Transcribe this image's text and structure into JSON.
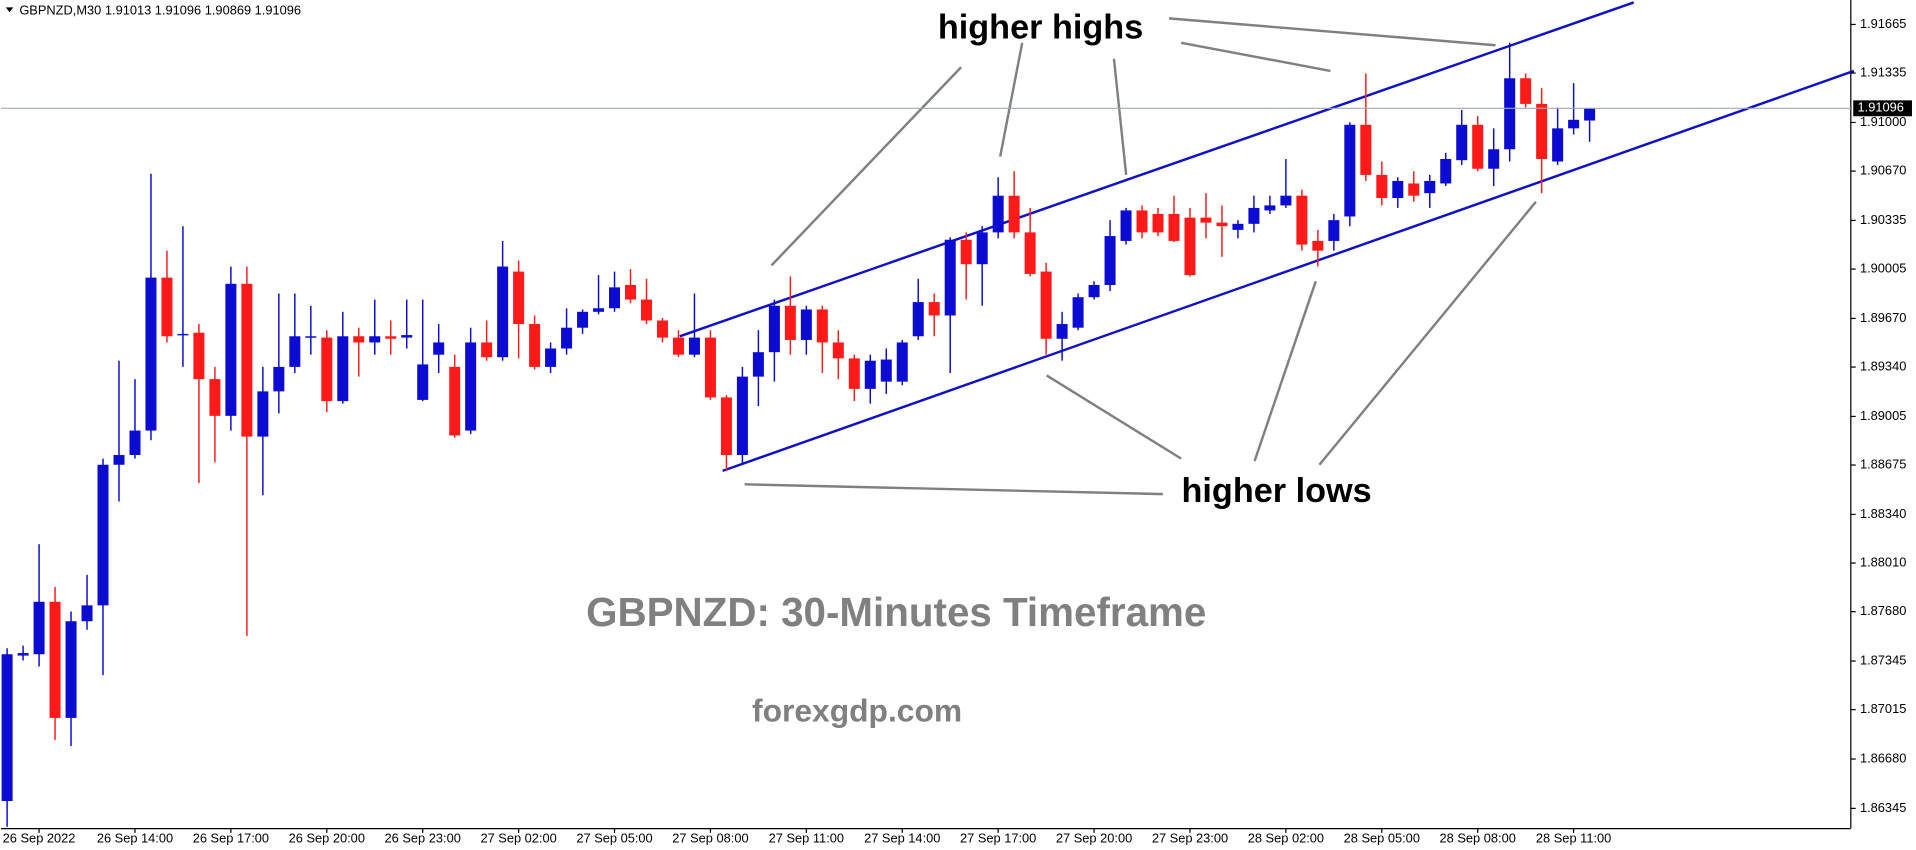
{
  "chart_data": {
    "type": "candlestick",
    "header": "GBPNZD,M30  1.91013 1.91096 1.90869 1.91096",
    "title": "GBPNZD: 30-Minutes Timeframe",
    "subtitle": "forexgdp.com",
    "annotations": [
      "higher highs",
      "higher lows"
    ],
    "up_color": "#0b0bd2",
    "down_color": "#ff1a1a",
    "ylim": [
      1.86212,
      1.91831
    ],
    "yticks": [
      1.91665,
      1.91335,
      {
        "value": 1.91,
        "label": "1.91000"
      },
      {
        "value": 1.9067,
        "label": "1.90670"
      },
      1.90335,
      1.90005,
      {
        "value": 1.8967,
        "label": "1.89670"
      },
      {
        "value": 1.8934,
        "label": "1.89340"
      },
      1.89005,
      1.88675,
      {
        "value": 1.8834,
        "label": "1.88340"
      },
      {
        "value": 1.8801,
        "label": "1.88010"
      },
      {
        "value": 1.8768,
        "label": "1.87680"
      },
      1.87345,
      1.87015,
      {
        "value": 1.8668,
        "label": "1.86680"
      },
      1.86345
    ],
    "categories": [
      null,
      null,
      "26 Sep 2022",
      null,
      null,
      null,
      null,
      null,
      "26 Sep 14:00",
      null,
      null,
      null,
      null,
      null,
      "26 Sep 17:00",
      null,
      null,
      null,
      null,
      null,
      "26 Sep 20:00",
      null,
      null,
      null,
      null,
      null,
      "26 Sep 23:00",
      null,
      null,
      null,
      null,
      null,
      "27 Sep 02:00",
      null,
      null,
      null,
      null,
      null,
      "27 Sep 05:00",
      null,
      null,
      null,
      null,
      null,
      "27 Sep 08:00",
      null,
      null,
      null,
      null,
      null,
      "27 Sep 11:00",
      null,
      null,
      null,
      null,
      null,
      "27 Sep 14:00",
      null,
      null,
      null,
      null,
      null,
      "27 Sep 17:00",
      null,
      null,
      null,
      null,
      null,
      "27 Sep 20:00",
      null,
      null,
      null,
      null,
      null,
      "27 Sep 23:00",
      null,
      null,
      null,
      null,
      null,
      "28 Sep 02:00",
      null,
      null,
      null,
      null,
      null,
      "28 Sep 05:00",
      null,
      null,
      null,
      null,
      null,
      "28 Sep 08:00",
      null,
      null,
      null,
      null,
      null,
      "28 Sep 11:00",
      null
    ],
    "open": [
      1.86395,
      1.87382,
      1.87391,
      1.87747,
      1.86959,
      1.87615,
      1.87723,
      1.88677,
      1.88743,
      1.88909,
      1.89947,
      1.89557,
      1.89573,
      1.89258,
      1.89009,
      1.89905,
      1.88868,
      1.89175,
      1.89341,
      1.8954,
      1.8954,
      1.89109,
      1.89549,
      1.89507,
      1.89549,
      1.8954,
      1.89117,
      1.89424,
      1.89341,
      1.88909,
      1.89507,
      1.89407,
      1.89988,
      1.89632,
      1.89341,
      1.89466,
      1.89607,
      1.89715,
      1.89739,
      1.89897,
      1.89798,
      1.89656,
      1.8954,
      1.89424,
      1.8954,
      1.89134,
      1.88743,
      1.89275,
      1.89441,
      1.89756,
      1.89524,
      1.89731,
      1.89507,
      1.89399,
      1.89192,
      1.89241,
      1.89241,
      1.89549,
      1.89781,
      1.8969,
      1.90204,
      1.90038,
      1.90254,
      1.90503,
      1.90254,
      1.89988,
      1.89532,
      1.89607,
      1.89814,
      1.89897,
      1.90196,
      1.90403,
      1.90379,
      1.90379,
      1.90354,
      1.90354,
      1.9032,
      1.90271,
      1.90312,
      1.90403,
      1.90437,
      1.90503,
      1.90196,
      1.90196,
      1.90362,
      1.90984,
      1.90644,
      1.90487,
      1.90586,
      1.9052,
      1.90586,
      1.90744,
      1.90984,
      1.90686,
      1.90818,
      1.913,
      1.91126,
      1.90735,
      1.9096,
      1.91013
    ],
    "high": [
      1.87432,
      1.87449,
      1.88138,
      1.87847,
      1.87681,
      1.8793,
      1.88719,
      1.89383,
      1.89258,
      1.90652,
      1.9013,
      1.90296,
      1.89632,
      1.89341,
      1.90022,
      1.90022,
      1.89341,
      1.89839,
      1.89839,
      1.89756,
      1.8959,
      1.89715,
      1.89607,
      1.89798,
      1.89656,
      1.89798,
      1.89798,
      1.89632,
      1.89424,
      1.89607,
      1.89656,
      1.90196,
      1.90063,
      1.8969,
      1.89507,
      1.89739,
      1.89731,
      1.89964,
      1.89988,
      1.90005,
      1.89939,
      1.89673,
      1.8959,
      1.89839,
      1.8959,
      1.8915,
      1.89341,
      1.8959,
      1.89798,
      1.89955,
      1.89756,
      1.89756,
      1.8959,
      1.89424,
      1.89424,
      1.89466,
      1.89524,
      1.89939,
      1.89839,
      1.90221,
      1.90254,
      1.90296,
      1.90628,
      1.90669,
      1.9042,
      1.90047,
      1.89715,
      1.89839,
      1.89922,
      1.90337,
      1.9042,
      1.90437,
      1.9042,
      1.90503,
      1.9042,
      1.9052,
      1.90437,
      1.90337,
      1.90503,
      1.90503,
      1.90752,
      1.90544,
      1.90271,
      1.90379,
      1.91001,
      1.91333,
      1.90735,
      1.90628,
      1.90669,
      1.90644,
      1.90794,
      1.91084,
      1.91043,
      1.9096,
      1.91541,
      1.91333,
      1.91233,
      1.91101,
      1.91267,
      1.91096
    ],
    "low": [
      1.8622,
      1.87349,
      1.87308,
      1.8681,
      1.86768,
      1.87557,
      1.87249,
      1.88428,
      1.88719,
      1.88843,
      1.89507,
      1.89341,
      1.88553,
      1.88694,
      1.88909,
      1.87515,
      1.8847,
      1.89026,
      1.893,
      1.89424,
      1.89034,
      1.89092,
      1.89275,
      1.89424,
      1.89424,
      1.89466,
      1.89109,
      1.893,
      1.8886,
      1.88885,
      1.89383,
      1.89383,
      1.89399,
      1.89324,
      1.893,
      1.89424,
      1.89565,
      1.89698,
      1.89715,
      1.89773,
      1.89632,
      1.89507,
      1.89407,
      1.89407,
      1.89117,
      1.88636,
      1.88677,
      1.89075,
      1.89241,
      1.89424,
      1.89424,
      1.893,
      1.89258,
      1.89109,
      1.89092,
      1.89158,
      1.89217,
      1.89524,
      1.89549,
      1.893,
      1.89798,
      1.89756,
      1.90213,
      1.90213,
      1.89955,
      1.89424,
      1.89383,
      1.8959,
      1.89798,
      1.89856,
      1.90171,
      1.90213,
      1.90229,
      1.90188,
      1.89955,
      1.90213,
      1.90088,
      1.90213,
      1.90254,
      1.90379,
      1.9042,
      1.9013,
      1.90022,
      1.9013,
      1.90296,
      1.90603,
      1.90437,
      1.9042,
      1.90462,
      1.9042,
      1.90569,
      1.90711,
      1.90669,
      1.90569,
      1.90735,
      1.91101,
      1.9052,
      1.90711,
      1.90918,
      1.90869
    ],
    "close": [
      1.87391,
      1.87399,
      1.87747,
      1.86959,
      1.87615,
      1.87723,
      1.88677,
      1.88743,
      1.88909,
      1.89947,
      1.89549,
      1.89565,
      1.89258,
      1.89009,
      1.89905,
      1.88868,
      1.89175,
      1.89341,
      1.89549,
      1.89549,
      1.89109,
      1.89549,
      1.89507,
      1.89549,
      1.89532,
      1.89557,
      1.89358,
      1.89507,
      1.88876,
      1.89507,
      1.89407,
      1.90022,
      1.89632,
      1.89341,
      1.89466,
      1.89607,
      1.89715,
      1.89739,
      1.89881,
      1.89798,
      1.89656,
      1.8954,
      1.89424,
      1.8954,
      1.89134,
      1.88743,
      1.89275,
      1.89441,
      1.89756,
      1.89524,
      1.89731,
      1.89507,
      1.89399,
      1.89192,
      1.89383,
      1.89391,
      1.89507,
      1.89781,
      1.8969,
      1.90204,
      1.90038,
      1.90254,
      1.90503,
      1.90254,
      1.89972,
      1.89532,
      1.89632,
      1.89814,
      1.89897,
      1.90229,
      1.90403,
      1.90254,
      1.90254,
      1.90196,
      1.89964,
      1.9032,
      1.90296,
      1.90312,
      1.9042,
      1.90437,
      1.90503,
      1.90171,
      1.9013,
      1.90337,
      1.90984,
      1.90644,
      1.90487,
      1.90603,
      1.90503,
      1.90603,
      1.90752,
      1.90984,
      1.90686,
      1.90818,
      1.913,
      1.91126,
      1.90752,
      1.9096,
      1.91018,
      1.91096
    ]
  }
}
